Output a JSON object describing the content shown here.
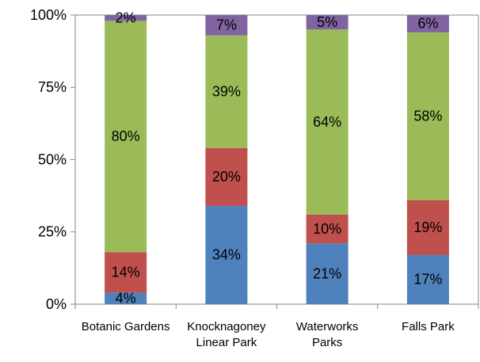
{
  "chart_data": {
    "type": "stacked_bar_percent",
    "categories": [
      "Botanic Gardens",
      "Knocknagoney Linear Park",
      "Waterworks Parks",
      "Falls Park"
    ],
    "series": [
      {
        "color": "#4f81bd",
        "values": [
          4,
          34,
          21,
          17
        ],
        "value_labels": [
          "4%",
          "34%",
          "21%",
          "17%"
        ]
      },
      {
        "color": "#c0504d",
        "values": [
          14,
          20,
          10,
          19
        ],
        "value_labels": [
          "14%",
          "20%",
          "10%",
          "19%"
        ]
      },
      {
        "color": "#9bbb59",
        "values": [
          80,
          39,
          64,
          58
        ],
        "value_labels": [
          "80%",
          "39%",
          "64%",
          "58%"
        ]
      },
      {
        "color": "#8064a2",
        "values": [
          2,
          7,
          5,
          6
        ],
        "value_labels": [
          "2%",
          "7%",
          "5%",
          "6%"
        ]
      }
    ],
    "ylim": [
      0,
      100
    ],
    "yticks": [
      {
        "value": 0,
        "label": "0%"
      },
      {
        "value": 25,
        "label": "25%"
      },
      {
        "value": 50,
        "label": "50%"
      },
      {
        "value": 75,
        "label": "75%"
      },
      {
        "value": 100,
        "label": "100%"
      }
    ]
  }
}
